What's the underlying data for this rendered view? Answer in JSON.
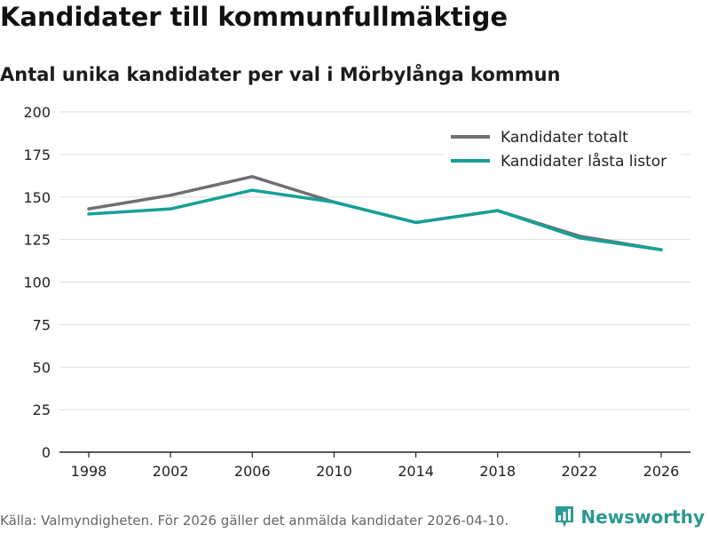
{
  "header": {
    "title": "Kandidater till kommunfullmäktige",
    "subtitle": "Antal unika kandidater per val i Mörbylånga kommun"
  },
  "footer": {
    "source": "Källa: Valmyndigheten. För 2026 gäller det anmälda kandidater 2026-04-10.",
    "brand": "Newsworthy"
  },
  "colors": {
    "total": "#6e6e73",
    "locked": "#16a096",
    "grid": "#dddddd",
    "axis": "#222222",
    "brand": "#2a9a90"
  },
  "chart_data": {
    "type": "line",
    "title": "Kandidater till kommunfullmäktige",
    "subtitle": "Antal unika kandidater per val i Mörbylånga kommun",
    "xlabel": "",
    "ylabel": "",
    "x": [
      1998,
      2002,
      2006,
      2010,
      2014,
      2018,
      2022,
      2026
    ],
    "ylim": [
      0,
      200
    ],
    "yticks": [
      0,
      25,
      50,
      75,
      100,
      125,
      150,
      175,
      200
    ],
    "grid": true,
    "legend_position": "top-right",
    "series": [
      {
        "name": "Kandidater totalt",
        "color_key": "total",
        "values": [
          143,
          151,
          162,
          147,
          135,
          142,
          127,
          119
        ]
      },
      {
        "name": "Kandidater låsta listor",
        "color_key": "locked",
        "values": [
          140,
          143,
          154,
          147,
          135,
          142,
          126,
          119
        ]
      }
    ]
  }
}
